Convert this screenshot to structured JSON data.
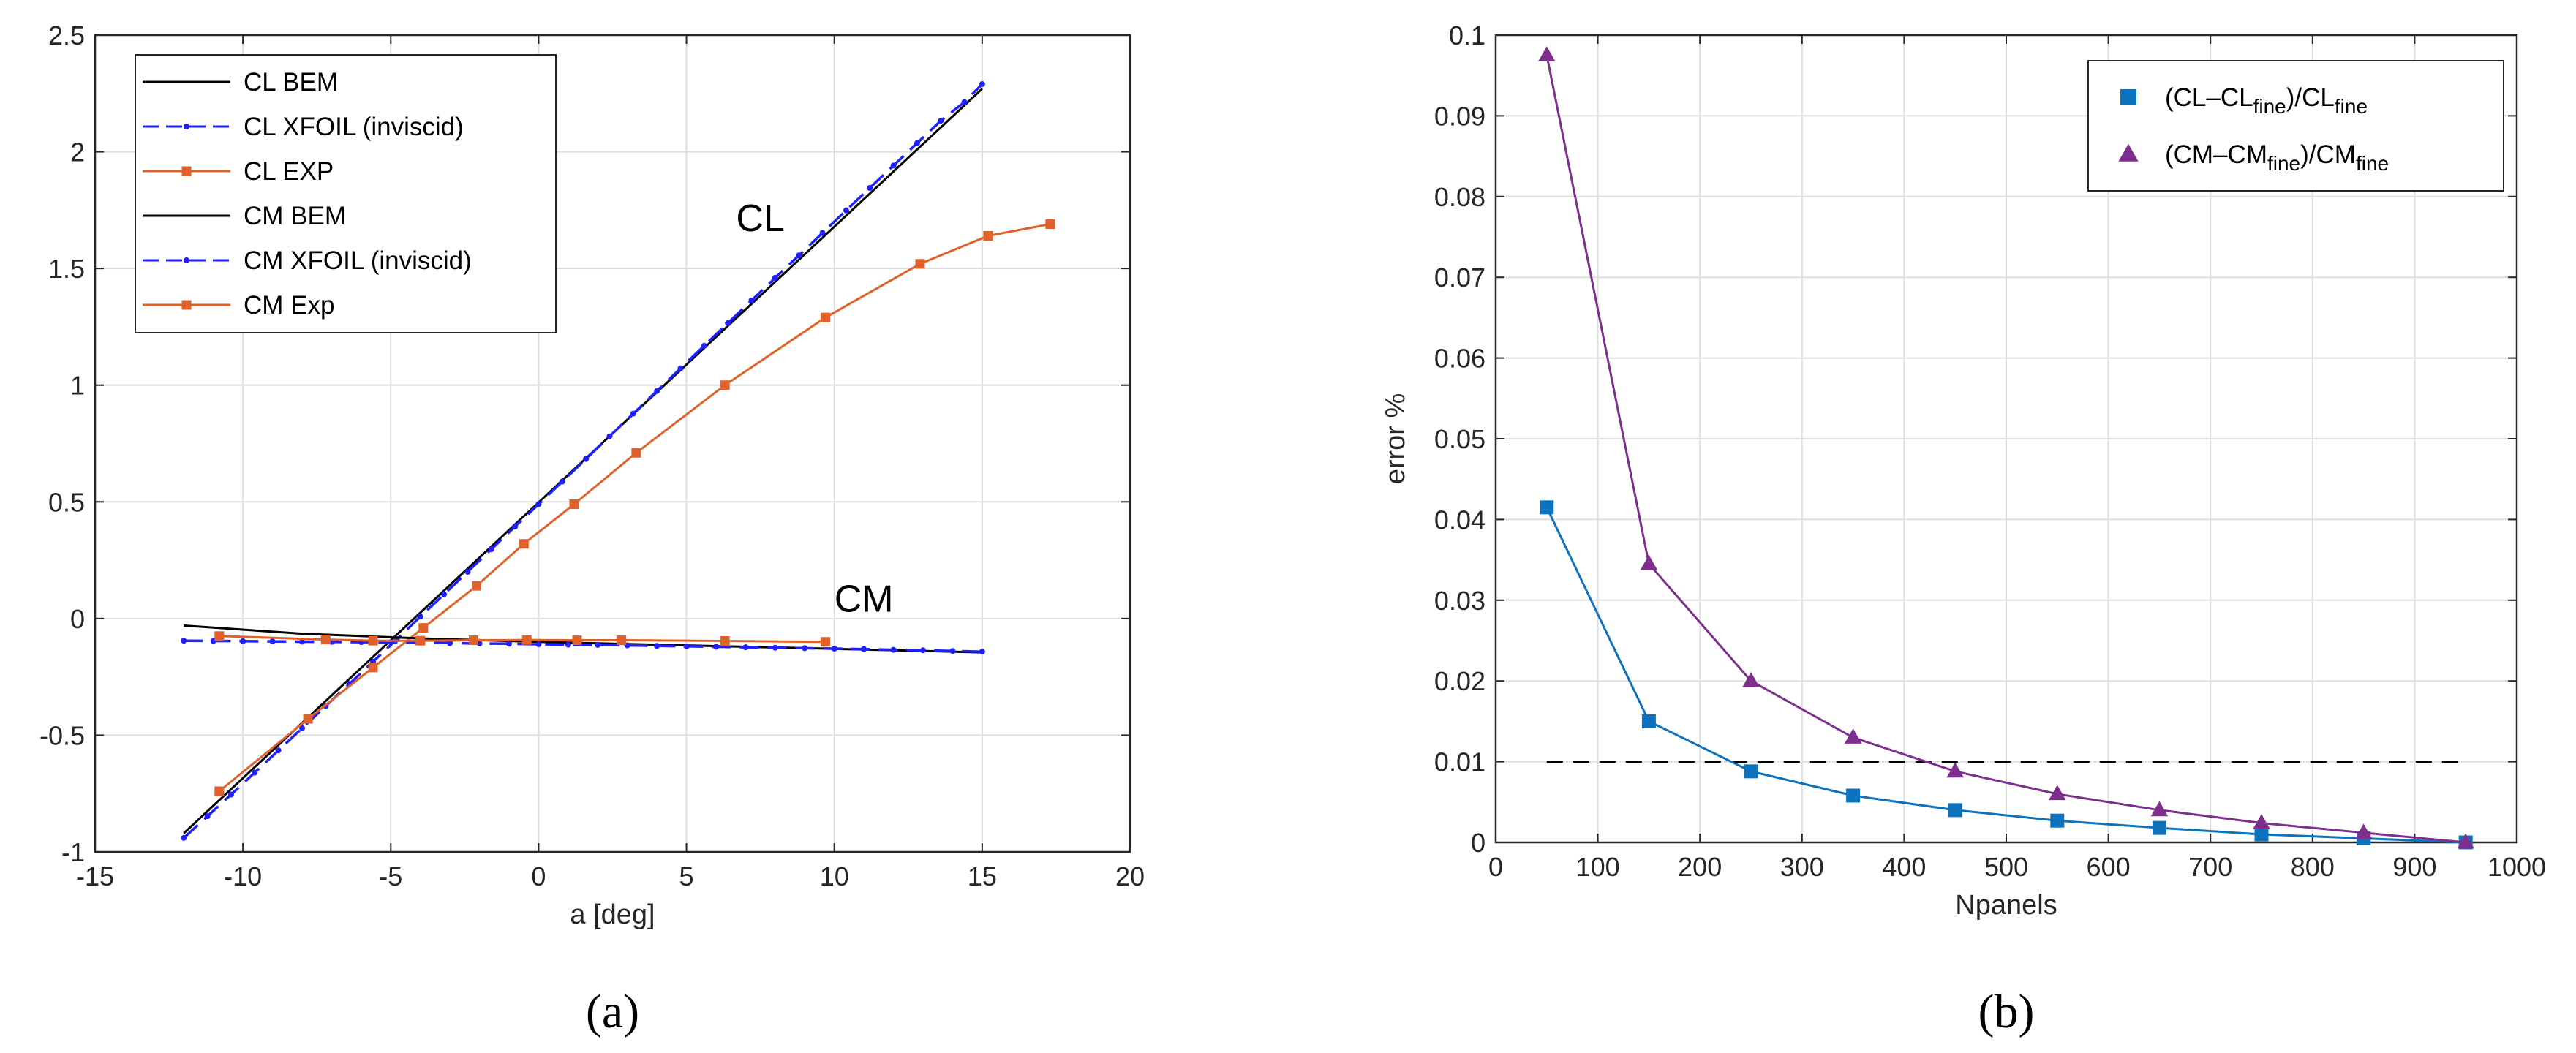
{
  "chart_data": [
    {
      "type": "line",
      "panel_label": "(a)",
      "xlabel": "a [deg]",
      "ylabel": "",
      "xlim": [
        -15,
        20
      ],
      "ylim": [
        -1,
        2.5
      ],
      "xticks": [
        -15,
        -10,
        -5,
        0,
        5,
        10,
        15,
        20
      ],
      "yticks": [
        -1,
        -0.5,
        0,
        0.5,
        1,
        1.5,
        2,
        2.5
      ],
      "xtick_labels": [
        "-15",
        "-10",
        "-5",
        "0",
        "5",
        "10",
        "15",
        "20"
      ],
      "ytick_labels": [
        "-1",
        "-0.5",
        "0",
        "0.5",
        "1",
        "1.5",
        "2",
        "2.5"
      ],
      "grid": true,
      "legend_position": "top-left",
      "annotations": [
        {
          "text": "CL",
          "x": 7.5,
          "y": 1.66
        },
        {
          "text": "CM",
          "x": 11,
          "y": 0.03
        }
      ],
      "series": [
        {
          "name": "CL BEM",
          "color": "#000000",
          "style": "solid",
          "marker": "none",
          "x": [
            -12,
            15
          ],
          "y": [
            -0.92,
            2.27
          ]
        },
        {
          "name": "CL XFOIL (inviscid)",
          "color": "#1f1fff",
          "style": "dashed",
          "marker": "dot",
          "x": [
            -12,
            -11.2,
            -10.4,
            -9.6,
            -8.8,
            -8,
            -7.2,
            -6.4,
            -5.6,
            -4.8,
            -4,
            -3.2,
            -2.4,
            -1.6,
            -0.8,
            0,
            0.8,
            1.6,
            2.4,
            3.2,
            4,
            4.8,
            5.6,
            6.4,
            7.2,
            8,
            8.8,
            9.6,
            10.4,
            11.2,
            12,
            12.8,
            13.6,
            14.4,
            15
          ],
          "y": [
            -0.94,
            -0.847,
            -0.754,
            -0.66,
            -0.565,
            -0.47,
            -0.375,
            -0.28,
            -0.185,
            -0.089,
            0.008,
            0.104,
            0.2,
            0.297,
            0.394,
            0.49,
            0.587,
            0.684,
            0.781,
            0.878,
            0.975,
            1.072,
            1.169,
            1.266,
            1.363,
            1.46,
            1.556,
            1.652,
            1.749,
            1.845,
            1.941,
            2.037,
            2.133,
            2.213,
            2.29
          ]
        },
        {
          "name": "CL EXP",
          "color": "#e0622a",
          "style": "solid",
          "marker": "square",
          "x": [
            -10.8,
            -7.8,
            -5.6,
            -3.9,
            -2.1,
            -0.5,
            1.2,
            3.3,
            6.3,
            9.7,
            12.9,
            15.2,
            17.3
          ],
          "y": [
            -0.74,
            -0.43,
            -0.21,
            -0.04,
            0.14,
            0.32,
            0.49,
            0.71,
            1.0,
            1.29,
            1.52,
            1.64,
            1.69
          ]
        },
        {
          "name": "CM BEM",
          "color": "#000000",
          "style": "solid",
          "marker": "none",
          "x": [
            -12,
            -8,
            -4,
            0,
            5,
            10,
            15
          ],
          "y": [
            -0.03,
            -0.065,
            -0.085,
            -0.1,
            -0.115,
            -0.13,
            -0.145
          ]
        },
        {
          "name": "CM XFOIL (inviscid)",
          "color": "#1f1fff",
          "style": "dashed",
          "marker": "dot",
          "x": [
            -12,
            -11,
            -10,
            -9,
            -8,
            -7,
            -6,
            -5,
            -4,
            -3,
            -2,
            -1,
            0,
            1,
            2,
            3,
            4,
            5,
            6,
            7,
            8,
            9,
            10,
            11,
            12,
            13,
            14,
            15
          ],
          "y": [
            -0.095,
            -0.096,
            -0.097,
            -0.098,
            -0.099,
            -0.1,
            -0.101,
            -0.102,
            -0.103,
            -0.105,
            -0.107,
            -0.108,
            -0.11,
            -0.112,
            -0.113,
            -0.115,
            -0.117,
            -0.119,
            -0.121,
            -0.123,
            -0.125,
            -0.127,
            -0.129,
            -0.131,
            -0.134,
            -0.136,
            -0.139,
            -0.142
          ]
        },
        {
          "name": "CM Exp",
          "color": "#e0622a",
          "style": "solid",
          "marker": "square",
          "x": [
            -10.8,
            -7.2,
            -5.6,
            -4,
            -2.2,
            -0.4,
            1.3,
            2.8,
            6.3,
            9.7
          ],
          "y": [
            -0.075,
            -0.09,
            -0.095,
            -0.095,
            -0.093,
            -0.092,
            -0.093,
            -0.093,
            -0.096,
            -0.1
          ]
        }
      ]
    },
    {
      "type": "line",
      "panel_label": "(b)",
      "xlabel": "Npanels",
      "ylabel": "error %",
      "xlim": [
        0,
        1000
      ],
      "ylim": [
        0,
        0.1
      ],
      "xticks": [
        0,
        100,
        200,
        300,
        400,
        500,
        600,
        700,
        800,
        900,
        1000
      ],
      "yticks": [
        0,
        0.01,
        0.02,
        0.03,
        0.04,
        0.05,
        0.06,
        0.07,
        0.08,
        0.09,
        0.1
      ],
      "xtick_labels": [
        "0",
        "100",
        "200",
        "300",
        "400",
        "500",
        "600",
        "700",
        "800",
        "900",
        "1000"
      ],
      "ytick_labels": [
        "0",
        "0.01",
        "0.02",
        "0.03",
        "0.04",
        "0.05",
        "0.06",
        "0.07",
        "0.08",
        "0.09",
        "0.1"
      ],
      "grid": true,
      "legend_position": "top-right",
      "reference_line": {
        "y": 0.01,
        "x": [
          50,
          950
        ],
        "color": "#000000",
        "style": "dashed"
      },
      "series": [
        {
          "name": "(CL–CL",
          "name_sub": "fine",
          "name_mid": ")/CL",
          "name_sub2": "fine",
          "color": "#0d72bd",
          "marker": "square",
          "x": [
            50,
            150,
            250,
            350,
            450,
            550,
            650,
            750,
            850,
            950
          ],
          "y": [
            0.0415,
            0.015,
            0.0088,
            0.0058,
            0.004,
            0.0027,
            0.0018,
            0.001,
            0.0005,
            0.0
          ]
        },
        {
          "name": "(CM–CM",
          "name_sub": "fine",
          "name_mid": ")/CM",
          "name_sub2": "fine",
          "color": "#7e2f8e",
          "marker": "triangle",
          "x": [
            50,
            150,
            250,
            350,
            450,
            550,
            650,
            750,
            850,
            950
          ],
          "y": [
            0.0975,
            0.0345,
            0.02,
            0.013,
            0.0088,
            0.006,
            0.004,
            0.0024,
            0.0012,
            0.0
          ]
        }
      ]
    }
  ]
}
